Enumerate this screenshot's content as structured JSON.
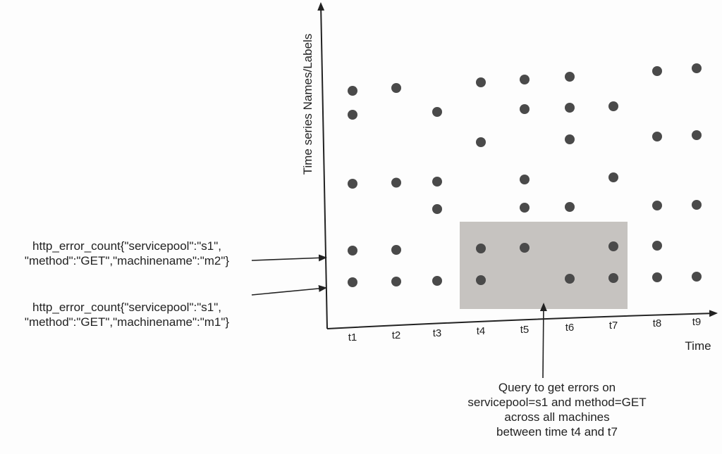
{
  "axes": {
    "y_label": "Time series Names/Labels",
    "x_label": "Time",
    "ticks": [
      "t1",
      "t2",
      "t3",
      "t4",
      "t5",
      "t6",
      "t7",
      "t8",
      "t9"
    ]
  },
  "series_labels": [
    {
      "line1": "http_error_count{\"servicepool\":\"s1\",",
      "line2": "\"method\":\"GET\",\"machinename\":\"m2\"}"
    },
    {
      "line1": "http_error_count{\"servicepool\":\"s1\",",
      "line2": "\"method\":\"GET\",\"machinename\":\"m1\"}"
    }
  ],
  "query_note": {
    "lines": [
      "Query to get errors on",
      "servicepool=s1 and method=GET",
      "across all machines",
      "between time t4 and t7"
    ]
  },
  "highlight": {
    "from_tick": "t4",
    "to_tick": "t7",
    "color": "#c6c3c0"
  },
  "colors": {
    "dot": "#4a4a4a",
    "axis": "#222222"
  },
  "chart_data": {
    "type": "scatter",
    "x": [
      "t1",
      "t2",
      "t3",
      "t4",
      "t5",
      "t6",
      "t7",
      "t8",
      "t9"
    ],
    "rows": [
      [
        "t1",
        "t2",
        "t4",
        "t5",
        "t6",
        "t8",
        "t9"
      ],
      [
        "t1",
        "t3",
        "t5",
        "t6",
        "t7"
      ],
      [
        "t4",
        "t6",
        "t8",
        "t9"
      ],
      [
        "t1",
        "t2",
        "t3",
        "t5",
        "t7"
      ],
      [
        "t3",
        "t5",
        "t6",
        "t8",
        "t9"
      ],
      [
        "t1",
        "t2",
        "t4",
        "t5",
        "t7",
        "t8"
      ],
      [
        "t1",
        "t2",
        "t3",
        "t4",
        "t6",
        "t7",
        "t8",
        "t9"
      ]
    ]
  }
}
